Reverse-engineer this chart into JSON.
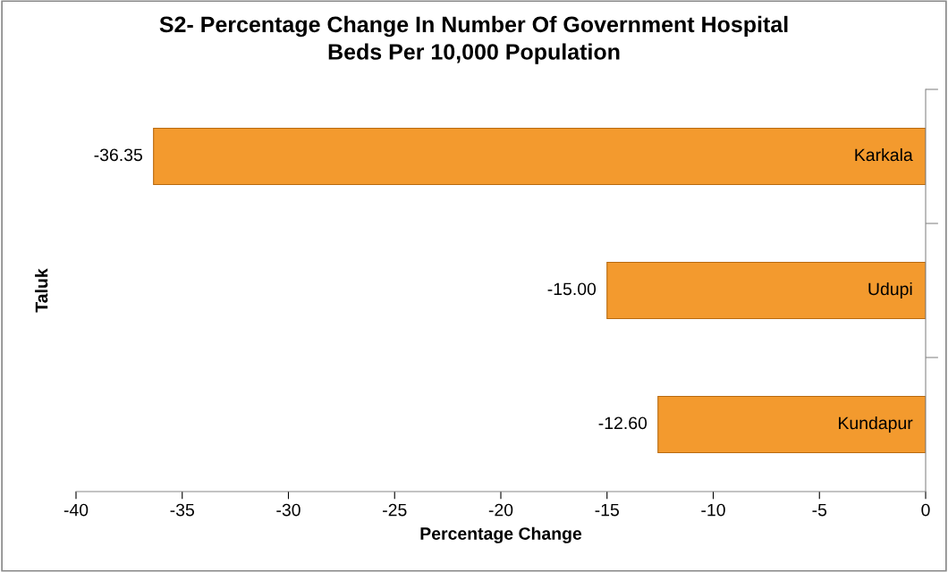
{
  "chart_data": {
    "type": "bar",
    "orientation": "horizontal",
    "title": "S2- Percentage Change In Number Of Government Hospital\nBeds Per 10,000 Population",
    "xlabel": "Percentage Change",
    "ylabel": "Taluk",
    "categories": [
      "Karkala",
      "Udupi",
      "Kundapur"
    ],
    "values": [
      -36.35,
      -15.0,
      -12.6
    ],
    "value_labels": [
      "-36.35",
      "-15.00",
      "-12.60"
    ],
    "color": "#f39a2e",
    "xlim": [
      -40,
      0
    ],
    "xticks": [
      -40,
      -35,
      -30,
      -25,
      -20,
      -15,
      -10,
      -5,
      0
    ],
    "grid": false,
    "legend": false
  }
}
